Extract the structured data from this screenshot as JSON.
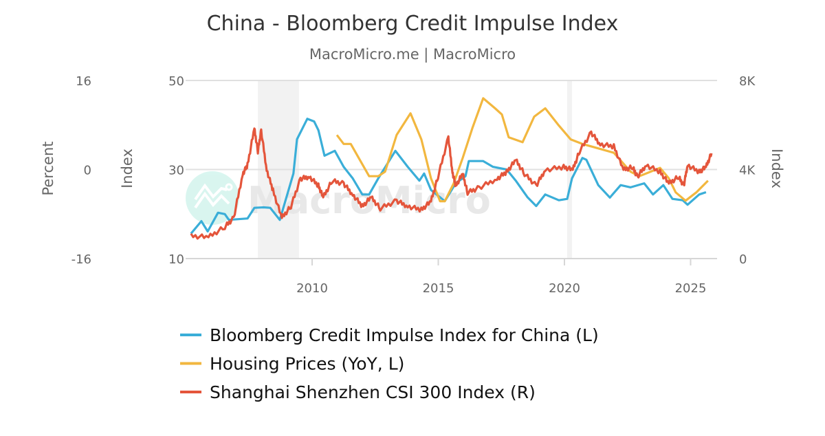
{
  "chart_data": {
    "type": "line",
    "title": "China - Bloomberg Credit Impulse Index",
    "subtitle": "MacroMicro.me | MacroMicro",
    "watermark": "MacroMicro",
    "x_range": [
      2005.0,
      2026.1
    ],
    "x_ticks": [
      "2010",
      "2015",
      "2020",
      "2025"
    ],
    "x_tick_values": [
      2010,
      2015,
      2020,
      2025
    ],
    "axes": {
      "left_outer": {
        "label": "Percent",
        "range": [
          -16,
          16
        ],
        "ticks": [
          "16",
          "0",
          "-16"
        ],
        "tick_values": [
          16,
          0,
          -16
        ]
      },
      "left_inner": {
        "label": "Index",
        "range": [
          10,
          50
        ],
        "ticks": [
          "50",
          "30",
          "10"
        ],
        "tick_values": [
          50,
          30,
          10
        ]
      },
      "right": {
        "label": "Index",
        "range": [
          0,
          8000
        ],
        "ticks": [
          "8K",
          "4K",
          "0"
        ],
        "tick_values": [
          8000,
          4000,
          0
        ]
      }
    },
    "grid": true,
    "recessions": [
      [
        2007.85,
        2009.48
      ],
      [
        2020.11,
        2020.3
      ]
    ],
    "legend_position": "bottom",
    "series": [
      {
        "name": "Bloomberg Credit Impulse Index for China (L)",
        "axis": "left_inner",
        "color": "#3aaed8",
        "points": [
          [
            2005.2,
            15.6
          ],
          [
            2005.61,
            18.4
          ],
          [
            2005.86,
            16.1
          ],
          [
            2006.27,
            20.3
          ],
          [
            2006.54,
            20.0
          ],
          [
            2006.7,
            18.7
          ],
          [
            2007.44,
            19.0
          ],
          [
            2007.71,
            21.4
          ],
          [
            2008.07,
            21.5
          ],
          [
            2008.34,
            21.4
          ],
          [
            2008.72,
            18.7
          ],
          [
            2009.26,
            29.1
          ],
          [
            2009.4,
            36.8
          ],
          [
            2009.81,
            41.4
          ],
          [
            2010.08,
            40.8
          ],
          [
            2010.25,
            38.8
          ],
          [
            2010.49,
            33.1
          ],
          [
            2010.9,
            34.2
          ],
          [
            2011.25,
            30.6
          ],
          [
            2011.61,
            28.0
          ],
          [
            2011.99,
            24.4
          ],
          [
            2012.26,
            24.4
          ],
          [
            2012.62,
            28.0
          ],
          [
            2013.3,
            34.2
          ],
          [
            2013.79,
            30.6
          ],
          [
            2014.25,
            27.5
          ],
          [
            2014.44,
            29.1
          ],
          [
            2014.71,
            25.4
          ],
          [
            2015.26,
            22.9
          ],
          [
            2015.69,
            26.9
          ],
          [
            2016.08,
            28.5
          ],
          [
            2016.21,
            31.9
          ],
          [
            2016.78,
            31.9
          ],
          [
            2017.17,
            30.6
          ],
          [
            2017.71,
            30.0
          ],
          [
            2018.07,
            27.5
          ],
          [
            2018.53,
            23.8
          ],
          [
            2018.88,
            21.8
          ],
          [
            2019.24,
            24.4
          ],
          [
            2019.78,
            23.1
          ],
          [
            2020.11,
            23.4
          ],
          [
            2020.3,
            28.0
          ],
          [
            2020.71,
            32.6
          ],
          [
            2020.87,
            32.2
          ],
          [
            2021.34,
            26.5
          ],
          [
            2021.8,
            23.7
          ],
          [
            2022.23,
            26.5
          ],
          [
            2022.62,
            26.0
          ],
          [
            2023.16,
            26.9
          ],
          [
            2023.51,
            24.4
          ],
          [
            2023.92,
            26.5
          ],
          [
            2024.28,
            23.4
          ],
          [
            2024.69,
            23.1
          ],
          [
            2024.88,
            22.1
          ],
          [
            2025.34,
            24.4
          ],
          [
            2025.61,
            24.9
          ]
        ]
      },
      {
        "name": "Housing Prices (YoY, L)",
        "axis": "left_outer",
        "color": "#f2b73f",
        "points": [
          [
            2010.98,
            6.2
          ],
          [
            2011.25,
            4.6
          ],
          [
            2011.53,
            4.6
          ],
          [
            2012.26,
            -1.2
          ],
          [
            2012.62,
            -1.2
          ],
          [
            2012.89,
            -0.4
          ],
          [
            2013.35,
            6.2
          ],
          [
            2013.9,
            10.1
          ],
          [
            2014.33,
            5.4
          ],
          [
            2014.71,
            -1.6
          ],
          [
            2015.07,
            -5.7
          ],
          [
            2015.26,
            -5.7
          ],
          [
            2015.61,
            -2.5
          ],
          [
            2015.97,
            2.1
          ],
          [
            2016.35,
            7.4
          ],
          [
            2016.78,
            12.8
          ],
          [
            2017.25,
            11.0
          ],
          [
            2017.52,
            9.9
          ],
          [
            2017.79,
            5.8
          ],
          [
            2018.34,
            4.9
          ],
          [
            2018.8,
            9.5
          ],
          [
            2019.24,
            11.0
          ],
          [
            2019.78,
            7.9
          ],
          [
            2020.25,
            5.4
          ],
          [
            2020.71,
            4.6
          ],
          [
            2021.42,
            3.7
          ],
          [
            2021.96,
            3.0
          ],
          [
            2022.62,
            -0.4
          ],
          [
            2022.97,
            -1.2
          ],
          [
            2023.79,
            0.3
          ],
          [
            2024.14,
            -1.6
          ],
          [
            2024.41,
            -4.1
          ],
          [
            2024.8,
            -5.6
          ],
          [
            2025.23,
            -4.1
          ],
          [
            2025.69,
            -2.0
          ]
        ]
      },
      {
        "name": "Shanghai Shenzhen CSI 300 Index (R)",
        "axis": "right",
        "color": "#e4553b",
        "points": [
          [
            2005.2,
            1020
          ],
          [
            2005.89,
            958
          ],
          [
            2006.54,
            1421
          ],
          [
            2006.89,
            1823
          ],
          [
            2007.25,
            3801
          ],
          [
            2007.44,
            4202
          ],
          [
            2007.71,
            5840
          ],
          [
            2007.85,
            4820
          ],
          [
            2007.98,
            5747
          ],
          [
            2008.2,
            3986
          ],
          [
            2008.45,
            3059
          ],
          [
            2008.8,
            1823
          ],
          [
            2009.16,
            2348
          ],
          [
            2009.54,
            3584
          ],
          [
            2009.89,
            3677
          ],
          [
            2010.25,
            3275
          ],
          [
            2010.44,
            2750
          ],
          [
            2010.79,
            3492
          ],
          [
            2011.25,
            3368
          ],
          [
            2011.61,
            2874
          ],
          [
            2011.99,
            2348
          ],
          [
            2012.34,
            2750
          ],
          [
            2012.7,
            2256
          ],
          [
            2013.35,
            2596
          ],
          [
            2013.79,
            2348
          ],
          [
            2014.33,
            2194
          ],
          [
            2014.71,
            2565
          ],
          [
            2014.99,
            3677
          ],
          [
            2015.4,
            5438
          ],
          [
            2015.56,
            3893
          ],
          [
            2015.69,
            3275
          ],
          [
            2015.97,
            3801
          ],
          [
            2016.16,
            2966
          ],
          [
            2016.62,
            3183
          ],
          [
            2017.33,
            3584
          ],
          [
            2017.71,
            3893
          ],
          [
            2018.07,
            4419
          ],
          [
            2018.42,
            3801
          ],
          [
            2018.88,
            3275
          ],
          [
            2019.24,
            3986
          ],
          [
            2019.97,
            4110
          ],
          [
            2020.33,
            3986
          ],
          [
            2020.6,
            4820
          ],
          [
            2021.06,
            5655
          ],
          [
            2021.42,
            5129
          ],
          [
            2021.96,
            5037
          ],
          [
            2022.34,
            3986
          ],
          [
            2022.7,
            4110
          ],
          [
            2022.89,
            3677
          ],
          [
            2023.24,
            4202
          ],
          [
            2023.79,
            3893
          ],
          [
            2024.14,
            3368
          ],
          [
            2024.52,
            3677
          ],
          [
            2024.73,
            3275
          ],
          [
            2024.88,
            4202
          ],
          [
            2025.34,
            3893
          ],
          [
            2025.61,
            4110
          ],
          [
            2025.83,
            4728
          ]
        ]
      }
    ]
  }
}
